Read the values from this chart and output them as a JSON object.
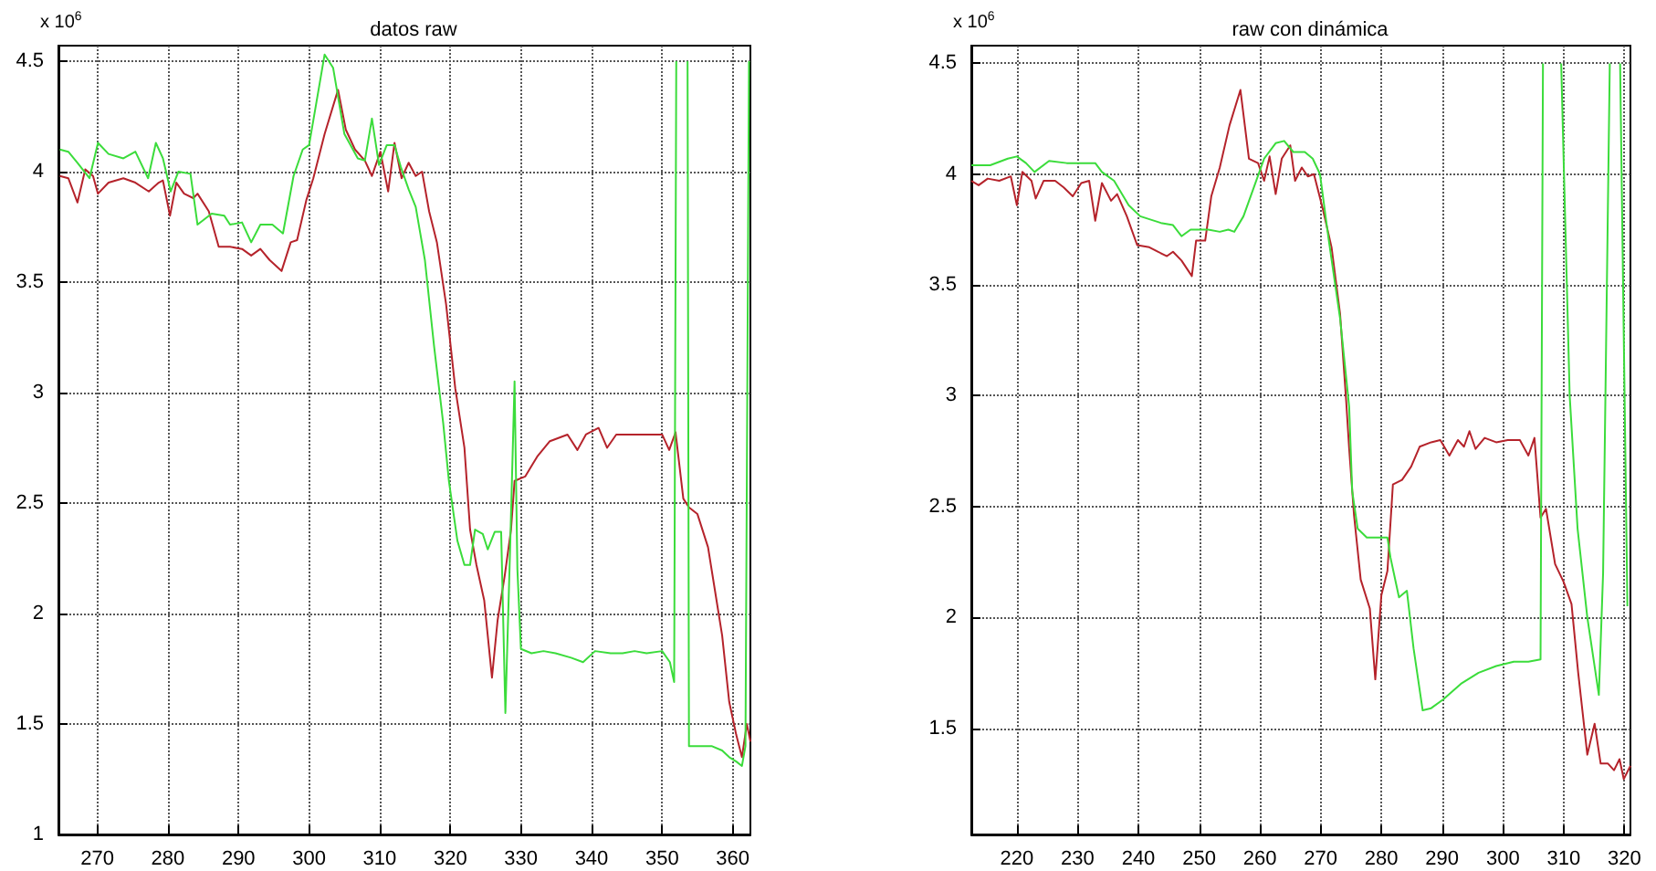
{
  "chart_data": [
    {
      "type": "line",
      "title": "datos raw",
      "annotations": [
        "x 10$^{6}$"
      ],
      "xlim": [
        264.5,
        362.5
      ],
      "xticks": [
        270,
        280,
        290,
        300,
        310,
        320,
        330,
        340,
        350,
        360
      ],
      "ylim": [
        1,
        4.57
      ],
      "yticks": [
        1,
        1.5,
        2,
        2.5,
        3,
        3.5,
        4,
        4.5
      ],
      "grid": true,
      "marker": "none",
      "line_style": "solid",
      "series": [
        {
          "color": "#b5232b",
          "x": [
            264.7,
            265.9,
            267.2,
            268.3,
            269.4,
            270.1,
            271.6,
            273.7,
            275.4,
            277.3,
            278.7,
            279.3,
            280.3,
            281.2,
            282.3,
            283.6,
            284.2,
            285.8,
            287.2,
            288.8,
            290.5,
            291.8,
            293.1,
            294.4,
            296.1,
            297.4,
            298.3,
            299.6,
            300.6,
            302.2,
            304.1,
            305.2,
            306.5,
            307.9,
            308.9,
            310.1,
            311.2,
            312.1,
            313.1,
            314.1,
            315.1,
            316.0,
            317.0,
            318.1,
            319.4,
            320.7,
            322.0,
            322.8,
            323.7,
            324.8,
            325.9,
            326.7,
            327.7,
            328.6,
            329.1,
            330.6,
            332.3,
            334.1,
            336.6,
            338.0,
            339.2,
            341.0,
            342.2,
            343.5,
            346.1,
            347.8,
            350.0,
            351.0,
            351.9,
            353.0,
            353.8,
            355.0,
            356.5,
            357.5,
            358.5,
            359.5,
            360.5,
            361.3,
            362.0,
            362.5
          ],
          "values": [
            3.98,
            3.97,
            3.86,
            4.01,
            3.98,
            3.9,
            3.95,
            3.97,
            3.95,
            3.91,
            3.95,
            3.96,
            3.8,
            3.95,
            3.9,
            3.88,
            3.9,
            3.82,
            3.66,
            3.66,
            3.65,
            3.62,
            3.65,
            3.6,
            3.55,
            3.68,
            3.69,
            3.87,
            3.97,
            4.17,
            4.37,
            4.19,
            4.1,
            4.05,
            3.98,
            4.09,
            3.91,
            4.13,
            3.97,
            4.04,
            3.98,
            4.0,
            3.82,
            3.68,
            3.4,
            3.02,
            2.75,
            2.38,
            2.22,
            2.06,
            1.71,
            1.97,
            2.17,
            2.38,
            2.6,
            2.62,
            2.71,
            2.78,
            2.81,
            2.74,
            2.81,
            2.84,
            2.75,
            2.81,
            2.81,
            2.81,
            2.81,
            2.74,
            2.82,
            2.52,
            2.48,
            2.45,
            2.3,
            2.1,
            1.9,
            1.6,
            1.45,
            1.35,
            1.5,
            1.42
          ]
        },
        {
          "color": "#3bdc3b",
          "x": [
            264.7,
            265.9,
            267.2,
            268.9,
            270.1,
            271.6,
            273.7,
            275.4,
            277.2,
            278.3,
            279.3,
            280.4,
            281.5,
            283.2,
            284.2,
            286.2,
            288.0,
            288.8,
            290.5,
            291.8,
            293.1,
            294.8,
            296.3,
            297.8,
            299.1,
            300.0,
            302.2,
            303.4,
            305.0,
            306.9,
            307.9,
            308.9,
            309.9,
            311.0,
            312.1,
            313.0,
            314.1,
            315.1,
            316.4,
            317.7,
            319.0,
            319.8,
            321.0,
            322.0,
            322.8,
            323.5,
            324.6,
            325.3,
            326.3,
            327.2,
            327.8,
            328.5,
            329.1,
            329.5,
            330.0,
            331.5,
            333.2,
            334.9,
            337.1,
            338.8,
            340.5,
            342.7,
            344.4,
            346.1,
            347.8,
            350.0,
            351.1,
            351.7,
            352.0,
            352.8,
            353.6,
            353.8,
            355.0,
            357.0,
            358.5,
            359.5,
            360.5,
            361.3,
            361.8,
            362.3
          ],
          "values": [
            4.1,
            4.09,
            4.04,
            3.97,
            4.13,
            4.08,
            4.06,
            4.09,
            3.97,
            4.13,
            4.06,
            3.91,
            4.0,
            3.99,
            3.76,
            3.81,
            3.8,
            3.76,
            3.77,
            3.68,
            3.76,
            3.76,
            3.72,
            3.98,
            4.1,
            4.12,
            4.53,
            4.47,
            4.17,
            4.06,
            4.05,
            4.24,
            4.03,
            4.12,
            4.12,
            4.02,
            3.92,
            3.84,
            3.6,
            3.21,
            2.86,
            2.6,
            2.33,
            2.22,
            2.22,
            2.38,
            2.36,
            2.29,
            2.37,
            2.37,
            1.55,
            2.33,
            3.05,
            2.2,
            1.84,
            1.82,
            1.83,
            1.82,
            1.8,
            1.78,
            1.83,
            1.82,
            1.82,
            1.83,
            1.82,
            1.83,
            1.78,
            1.69,
            4.5,
            null,
            4.5,
            1.4,
            1.4,
            1.4,
            1.38,
            1.35,
            1.33,
            1.31,
            1.4,
            4.5
          ]
        }
      ]
    },
    {
      "type": "line",
      "title": "raw con dinámica",
      "annotations": [
        "x 10$^{6}$"
      ],
      "xlim": [
        212.5,
        321
      ],
      "xticks": [
        220,
        230,
        240,
        250,
        260,
        270,
        280,
        290,
        300,
        310,
        320
      ],
      "ylim": [
        1.02,
        4.58
      ],
      "yticks": [
        1.5,
        2,
        2.5,
        3,
        3.5,
        4,
        4.5
      ],
      "grid": true,
      "marker": "none",
      "line_style": "solid",
      "series": [
        {
          "color": "#b5232b",
          "x": [
            212.5,
            213.7,
            215.2,
            217.1,
            219.0,
            220.0,
            220.9,
            222.4,
            223.1,
            224.4,
            226.3,
            227.7,
            229.2,
            230.6,
            231.9,
            232.9,
            234.0,
            235.5,
            236.5,
            238.1,
            239.8,
            241.8,
            243.2,
            244.7,
            245.7,
            247.1,
            248.8,
            249.5,
            251.0,
            252.0,
            253.4,
            255.0,
            256.8,
            258.2,
            259.7,
            260.7,
            261.6,
            262.6,
            263.6,
            265.0,
            265.8,
            266.9,
            267.9,
            268.9,
            270.3,
            271.8,
            273.2,
            274.2,
            274.7,
            275.5,
            276.6,
            278.1,
            279.0,
            280.0,
            281.0,
            281.9,
            283.4,
            284.9,
            286.3,
            288.2,
            289.7,
            291.2,
            292.6,
            293.6,
            294.5,
            295.5,
            297.0,
            298.9,
            300.8,
            302.8,
            304.2,
            305.2,
            306.2,
            307.1,
            308.6,
            310.0,
            311.3,
            312.4,
            313.9,
            315.1,
            316.1,
            317.3,
            318.3,
            319.2,
            319.9,
            321.0
          ],
          "values": [
            3.97,
            3.95,
            3.98,
            3.97,
            3.99,
            3.86,
            4.01,
            3.97,
            3.89,
            3.97,
            3.97,
            3.94,
            3.9,
            3.96,
            3.97,
            3.79,
            3.96,
            3.88,
            3.91,
            3.81,
            3.68,
            3.67,
            3.65,
            3.63,
            3.65,
            3.61,
            3.54,
            3.7,
            3.7,
            3.9,
            4.03,
            4.22,
            4.38,
            4.07,
            4.05,
            3.97,
            4.08,
            3.91,
            4.07,
            4.13,
            3.97,
            4.03,
            3.99,
            4.0,
            3.85,
            3.67,
            3.37,
            2.98,
            2.76,
            2.46,
            2.17,
            2.04,
            1.72,
            2.1,
            2.21,
            2.6,
            2.62,
            2.68,
            2.77,
            2.79,
            2.8,
            2.73,
            2.8,
            2.77,
            2.84,
            2.76,
            2.81,
            2.79,
            2.8,
            2.8,
            2.73,
            2.81,
            2.45,
            2.49,
            2.24,
            2.16,
            2.06,
            1.75,
            1.38,
            1.52,
            1.34,
            1.34,
            1.31,
            1.36,
            1.27,
            1.33
          ]
        },
        {
          "color": "#3bdc3b",
          "x": [
            212.5,
            215.6,
            218.5,
            220.0,
            221.5,
            222.9,
            225.3,
            228.2,
            231.1,
            232.9,
            234.0,
            236.0,
            238.4,
            240.3,
            243.7,
            245.7,
            247.1,
            248.6,
            251.5,
            253.4,
            254.8,
            255.8,
            257.3,
            259.0,
            260.7,
            262.6,
            264.0,
            265.5,
            267.4,
            268.7,
            269.9,
            271.3,
            273.2,
            274.7,
            275.2,
            276.1,
            277.6,
            279.5,
            281.0,
            281.5,
            282.9,
            284.2,
            285.3,
            286.8,
            288.2,
            290.2,
            293.1,
            296.0,
            298.9,
            301.8,
            304.2,
            306.2,
            306.6,
            308.0,
            309.6,
            311.0,
            312.3,
            313.9,
            315.8,
            316.5,
            317.6,
            318.5,
            319.3,
            320.5
          ],
          "values": [
            4.04,
            4.04,
            4.07,
            4.08,
            4.05,
            4.01,
            4.06,
            4.05,
            4.05,
            4.05,
            4.01,
            3.97,
            3.86,
            3.81,
            3.78,
            3.77,
            3.72,
            3.75,
            3.75,
            3.74,
            3.75,
            3.74,
            3.81,
            3.94,
            4.07,
            4.14,
            4.15,
            4.1,
            4.1,
            4.07,
            4.0,
            3.71,
            3.35,
            2.95,
            2.57,
            2.4,
            2.36,
            2.36,
            2.36,
            2.27,
            2.09,
            2.12,
            1.86,
            1.58,
            1.59,
            1.63,
            1.7,
            1.75,
            1.78,
            1.8,
            1.8,
            1.81,
            4.5,
            null,
            4.5,
            3.0,
            2.4,
            2.0,
            1.65,
            2.2,
            4.5,
            null,
            4.5,
            2.05
          ]
        }
      ]
    }
  ]
}
